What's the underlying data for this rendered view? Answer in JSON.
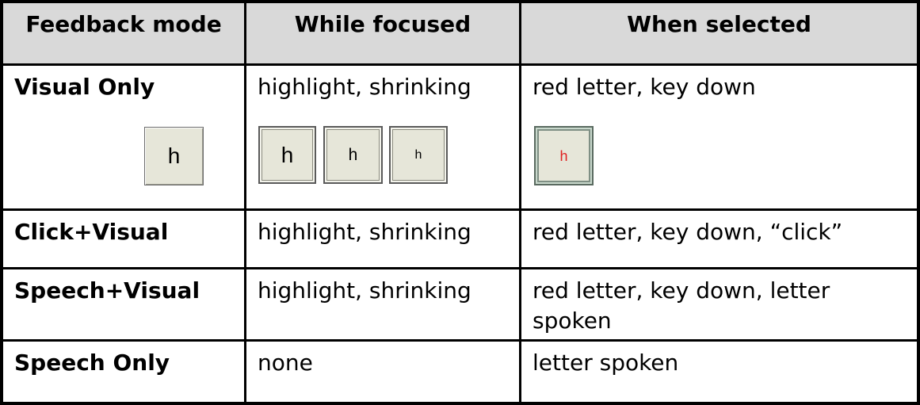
{
  "table": {
    "headers": [
      "Feedback mode",
      "While focused",
      "When selected"
    ],
    "rows": [
      {
        "mode": "Visual Only",
        "focused": "highlight, shrinking",
        "selected": "red letter, key down"
      },
      {
        "mode": "Click+Visual",
        "focused": "highlight, shrinking",
        "selected": "red letter, key down, “click”"
      },
      {
        "mode": "Speech+Visual",
        "focused": "highlight, shrinking",
        "selected": "red letter, key down, letter spoken"
      },
      {
        "mode": "Speech Only",
        "focused": "none",
        "selected": "letter spoken"
      }
    ]
  },
  "keys": {
    "normal_letter": "h",
    "focused_letters": [
      "h",
      "h",
      "h"
    ],
    "selected_letter": "h",
    "selected_letter_color": "#e02020"
  },
  "colors": {
    "header_bg": "#d9d9d9",
    "key_face": "#e6e6d9",
    "border": "#000000"
  }
}
